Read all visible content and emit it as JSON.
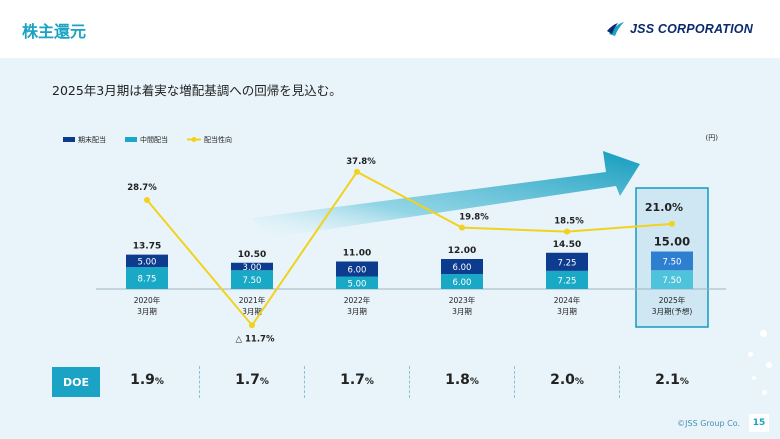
{
  "header": {
    "title": "株主還元",
    "logo_text": "JSS CORPORATION"
  },
  "headline": "2025年3月期は着実な増配基調への回帰を見込む。",
  "legend": {
    "year_end": "期末配当",
    "interim": "中間配当",
    "payout": "配当性向"
  },
  "unit": "(円)",
  "colors": {
    "year_end": "#0d3b8e",
    "interim": "#19a9c6",
    "forecast_year_end": "#2f7fd1",
    "forecast_interim": "#4fc3dc",
    "payout_line": "#f2d21c",
    "arrow": "#139bbd",
    "forecast_box": "#cfe7f3"
  },
  "chart_data": {
    "type": "bar",
    "categories": [
      "2020年\n3月期",
      "2021年\n3月期",
      "2022年\n3月期",
      "2023年\n3月期",
      "2024年\n3月期",
      "2025年\n3月期(予想)"
    ],
    "series": [
      {
        "name": "中間配当",
        "values": [
          8.75,
          7.5,
          5.0,
          6.0,
          7.25,
          7.5
        ],
        "labels": [
          "8.75",
          "7.50",
          "5.00",
          "6.00",
          "7.25",
          "7.50"
        ]
      },
      {
        "name": "期末配当",
        "values": [
          5.0,
          3.0,
          6.0,
          6.0,
          7.25,
          7.5
        ],
        "labels": [
          "5.00",
          "3.00",
          "6.00",
          "6.00",
          "7.25",
          "7.50"
        ]
      }
    ],
    "totals": [
      "13.75",
      "10.50",
      "11.00",
      "12.00",
      "14.50",
      "15.00"
    ],
    "payout_ratio": {
      "name": "配当性向",
      "values": [
        28.7,
        -11.7,
        37.8,
        19.8,
        18.5,
        21.0
      ],
      "labels": [
        "28.7%",
        "△ 11.7%",
        "37.8%",
        "19.8%",
        "18.5%",
        "21.0%"
      ]
    },
    "forecast_index": 5,
    "ylabel": "(円)"
  },
  "doe": {
    "label": "DOE",
    "values": [
      "1.9",
      "1.7",
      "1.7",
      "1.8",
      "2.0",
      "2.1"
    ],
    "unit": "%"
  },
  "footer": {
    "copyright": "©JSS Group Co.",
    "page": "15"
  }
}
